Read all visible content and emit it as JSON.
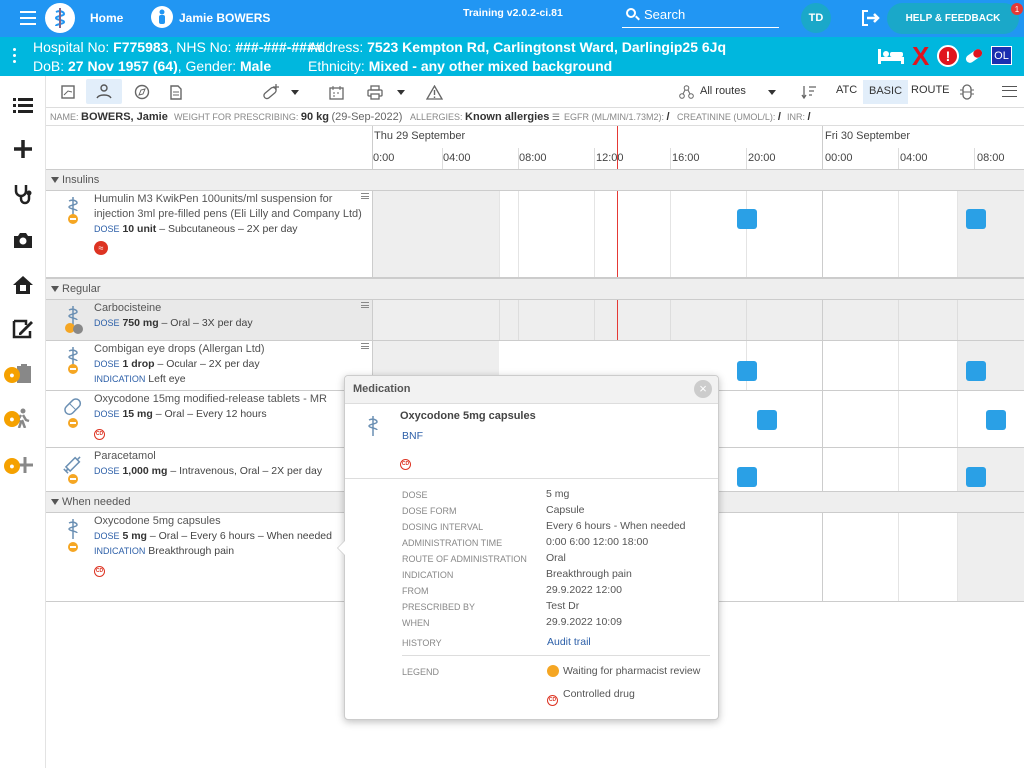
{
  "topbar": {
    "home_label": "Home",
    "patient_name": "Jamie BOWERS",
    "version": "Training v2.0.2-ci.81",
    "search_label": "Search",
    "user_initials": "TD",
    "help_label": "HELP & FEEDBACK",
    "help_badge": "1"
  },
  "patient_banner": {
    "hospital_label": "Hospital No:",
    "hospital_no": "F775983",
    "nhs_label": ", NHS No:",
    "nhs_no": "###-###-####",
    "address_label": "Address:",
    "address": "7523 Kempton Rd, Carlingtonst Ward, Darlingip25 6Jq",
    "dob_label": "DoB:",
    "dob": "27 Nov 1957 (64)",
    "gender_label": ", Gender:",
    "gender": "Male",
    "ethnicity_label": "Ethnicity:",
    "ethnicity": "Mixed - any other mixed background",
    "ol_badge": "OL"
  },
  "toolbar": {
    "routes_select": "All routes",
    "atc_label": "ATC",
    "basic_label": "BASIC",
    "route_label": "ROUTE"
  },
  "info": {
    "name_label": "NAME:",
    "name": "BOWERS, Jamie",
    "weight_label": "WEIGHT FOR PRESCRIBING:",
    "weight": "90 kg",
    "weight_date": "(29-Sep-2022)",
    "allergies_label": "ALLERGIES:",
    "allergies": "Known allergies",
    "egfr_label": "EGFR (ML/MIN/1.73M2):",
    "egfr": "/",
    "creat_label": "CREATININE (UMOL/L):",
    "creat": "/",
    "inr_label": "INR:",
    "inr": "/"
  },
  "timeline": {
    "day1": "Thu 29 September",
    "day2": "Fri 30 September",
    "ticks": [
      "0:00",
      "04:00",
      "08:00",
      "12:00",
      "16:00",
      "20:00",
      "00:00",
      "04:00",
      "08:00"
    ]
  },
  "groups": {
    "insulins": "Insulins",
    "regular": "Regular",
    "when_needed": "When needed"
  },
  "labels": {
    "dose": "DOSE",
    "indication": "INDICATION"
  },
  "meds": [
    {
      "name": "Humulin M3 KwikPen 100units/ml suspension for injection 3ml pre-filled pens (Eli Lilly and Company Ltd)",
      "dose": "10 unit",
      "detail": "– Subcutaneous – 2X per day"
    },
    {
      "name": "Carbocisteine",
      "dose": "750 mg",
      "detail": "– Oral – 3X per day"
    },
    {
      "name": "Combigan eye drops (Allergan Ltd)",
      "dose": "1 drop",
      "detail": "– Ocular – 2X per day",
      "indication": "Left eye"
    },
    {
      "name": "Oxycodone 15mg modified-release tablets - MR",
      "dose": "15 mg",
      "detail": "– Oral – Every 12 hours"
    },
    {
      "name": "Paracetamol",
      "dose": "1,000 mg",
      "detail": "– Intravenous, Oral – 2X per day"
    },
    {
      "name": "Oxycodone 5mg capsules",
      "dose": "5 mg",
      "detail": "– Oral – Every 6 hours – When needed",
      "indication": "Breakthrough pain"
    }
  ],
  "cd_text": "CD",
  "popup": {
    "title": "Medication",
    "drug_name": "Oxycodone 5mg capsules",
    "bnf_link": "BNF",
    "fields": [
      {
        "label": "DOSE",
        "value": "5 mg"
      },
      {
        "label": "DOSE FORM",
        "value": "Capsule"
      },
      {
        "label": "DOSING INTERVAL",
        "value": "Every 6 hours - When needed"
      },
      {
        "label": "ADMINISTRATION TIME",
        "value": "0:00 6:00 12:00 18:00"
      },
      {
        "label": "ROUTE OF ADMINISTRATION",
        "value": "Oral"
      },
      {
        "label": "INDICATION",
        "value": "Breakthrough pain"
      },
      {
        "label": "FROM",
        "value": "29.9.2022 12:00"
      },
      {
        "label": "PRESCRIBED BY",
        "value": "Test Dr"
      },
      {
        "label": "WHEN",
        "value": "29.9.2022 10:09"
      }
    ],
    "history_label": "HISTORY",
    "history_link": "Audit trail",
    "legend_label": "LEGEND",
    "legend_pharmacist": "Waiting for pharmacist review",
    "legend_cd": "Controlled drug"
  },
  "colors": {
    "topbar": "#2196f3",
    "patient_banner": "#00b7de",
    "dose_marker": "#2aa0e6",
    "now_line": "#e53935"
  },
  "icons": [
    "menu-icon",
    "search-icon",
    "logout-icon",
    "bed-icon",
    "alert-icon",
    "pill-icon",
    "list-icon",
    "plus-icon",
    "stethoscope-icon",
    "camera-icon",
    "home-icon",
    "sign-icon",
    "lock-icon"
  ]
}
